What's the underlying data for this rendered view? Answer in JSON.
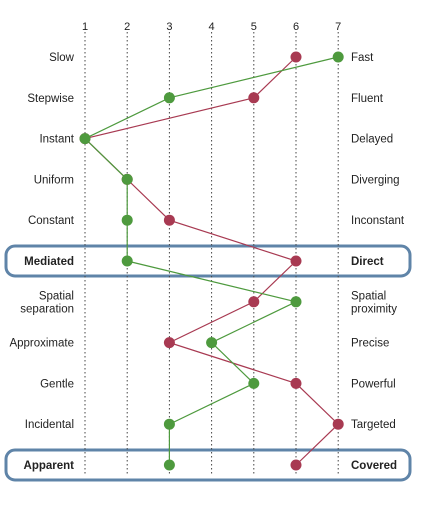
{
  "chart_data": {
    "type": "line",
    "x_ticks": [
      "1",
      "2",
      "3",
      "4",
      "5",
      "6",
      "7"
    ],
    "xlim": [
      1,
      7
    ],
    "grid": "vertical-dotted",
    "rows": [
      {
        "left": [
          "Slow"
        ],
        "right": [
          "Fast"
        ],
        "highlight": false
      },
      {
        "left": [
          "Stepwise"
        ],
        "right": [
          "Fluent"
        ],
        "highlight": false
      },
      {
        "left": [
          "Instant"
        ],
        "right": [
          "Delayed"
        ],
        "highlight": false
      },
      {
        "left": [
          "Uniform"
        ],
        "right": [
          "Diverging"
        ],
        "highlight": false
      },
      {
        "left": [
          "Constant"
        ],
        "right": [
          "Inconstant"
        ],
        "highlight": false
      },
      {
        "left": [
          "Mediated"
        ],
        "right": [
          "Direct"
        ],
        "highlight": true
      },
      {
        "left": [
          "Spatial",
          "separation"
        ],
        "right": [
          "Spatial",
          "proximity"
        ],
        "highlight": false
      },
      {
        "left": [
          "Approximate"
        ],
        "right": [
          "Precise"
        ],
        "highlight": false
      },
      {
        "left": [
          "Gentle"
        ],
        "right": [
          "Powerful"
        ],
        "highlight": false
      },
      {
        "left": [
          "Incidental"
        ],
        "right": [
          "Targeted"
        ],
        "highlight": false
      },
      {
        "left": [
          "Apparent"
        ],
        "right": [
          "Covered"
        ],
        "highlight": true
      }
    ],
    "series": [
      {
        "color": "#a83a52",
        "values": [
          6,
          5,
          1,
          2,
          3,
          6,
          5,
          3,
          6,
          7,
          6
        ]
      },
      {
        "color": "#4e9a3e",
        "values": [
          7,
          3,
          1,
          2,
          2,
          2,
          6,
          4,
          5,
          3,
          3
        ]
      }
    ],
    "highlight_color": "#5f84a8"
  }
}
